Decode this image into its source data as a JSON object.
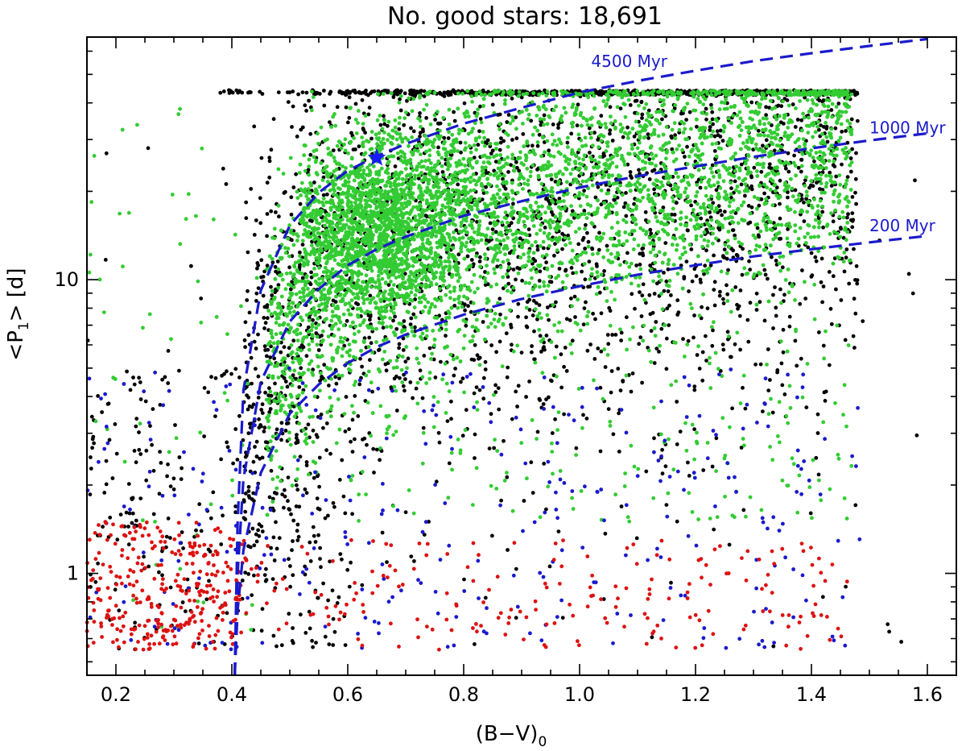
{
  "chart_data": {
    "type": "scatter",
    "title": "No. good stars: 18,691",
    "xlabel": "(B−V)",
    "xlabel_sub": "0",
    "ylabel_pre": "<P",
    "ylabel_sub": "1",
    "ylabel_post": "> [d]",
    "xlim": [
      0.15,
      1.65
    ],
    "ylim": [
      0.45,
      67
    ],
    "y_scale": "log",
    "grid": false,
    "x_ticks": [
      {
        "value": 0.2,
        "label": "0.2"
      },
      {
        "value": 0.4,
        "label": "0.4"
      },
      {
        "value": 0.6,
        "label": "0.6"
      },
      {
        "value": 0.8,
        "label": "0.8"
      },
      {
        "value": 1.0,
        "label": "1.0"
      },
      {
        "value": 1.2,
        "label": "1.2"
      },
      {
        "value": 1.4,
        "label": "1.4"
      },
      {
        "value": 1.6,
        "label": "1.6"
      }
    ],
    "y_ticks": [
      {
        "value": 1,
        "label": "1"
      },
      {
        "value": 10,
        "label": "10"
      }
    ],
    "colors": {
      "black": "#000000",
      "green": "#33cc33",
      "blue": "#1a1acc",
      "red": "#dd1111",
      "curve": "#1a1acc",
      "star": "#1a1aff"
    },
    "gyrochrones": [
      {
        "label": "4500 Myr",
        "label_at": [
          1.02,
          53
        ],
        "points": [
          [
            0.405,
            0.45
          ],
          [
            0.41,
            1.5
          ],
          [
            0.42,
            4.2
          ],
          [
            0.45,
            9.2
          ],
          [
            0.5,
            15.3
          ],
          [
            0.55,
            19.8
          ],
          [
            0.6,
            23.5
          ],
          [
            0.65,
            26.3
          ],
          [
            0.7,
            29
          ],
          [
            0.8,
            34
          ],
          [
            0.9,
            38.5
          ],
          [
            1.0,
            43.4
          ],
          [
            1.1,
            47.5
          ],
          [
            1.2,
            51.5
          ],
          [
            1.3,
            55.5
          ],
          [
            1.4,
            59
          ],
          [
            1.5,
            62.5
          ],
          [
            1.6,
            66
          ]
        ]
      },
      {
        "label": "1000 Myr",
        "label_at": [
          1.5,
          31.5
        ],
        "points": [
          [
            0.405,
            0.45
          ],
          [
            0.41,
            1.0
          ],
          [
            0.42,
            2.1
          ],
          [
            0.45,
            4.5
          ],
          [
            0.5,
            7.2
          ],
          [
            0.55,
            9.3
          ],
          [
            0.6,
            11.2
          ],
          [
            0.65,
            12.7
          ],
          [
            0.7,
            14
          ],
          [
            0.8,
            16.5
          ],
          [
            0.9,
            18.5
          ],
          [
            1.0,
            20.6
          ],
          [
            1.1,
            22.5
          ],
          [
            1.2,
            24.3
          ],
          [
            1.3,
            26.2
          ],
          [
            1.4,
            28
          ],
          [
            1.5,
            29.8
          ],
          [
            1.6,
            31.5
          ]
        ]
      },
      {
        "label": "200 Myr",
        "label_at": [
          1.5,
          14.6
        ],
        "points": [
          [
            0.405,
            0.45
          ],
          [
            0.41,
            0.75
          ],
          [
            0.42,
            1.2
          ],
          [
            0.45,
            2.2
          ],
          [
            0.5,
            3.5
          ],
          [
            0.55,
            4.4
          ],
          [
            0.6,
            5.2
          ],
          [
            0.65,
            5.9
          ],
          [
            0.7,
            6.5
          ],
          [
            0.8,
            7.6
          ],
          [
            0.9,
            8.6
          ],
          [
            1.0,
            9.5
          ],
          [
            1.1,
            10.4
          ],
          [
            1.2,
            11.2
          ],
          [
            1.3,
            12
          ],
          [
            1.4,
            12.7
          ],
          [
            1.5,
            13.4
          ],
          [
            1.6,
            14.1
          ]
        ]
      }
    ],
    "sun_marker": {
      "x": 0.65,
      "y": 26
    },
    "point_groups": [
      {
        "color": "black",
        "count": 2600,
        "x_range": [
          0.42,
          1.48
        ],
        "center_line": "1000 Myr",
        "spread_dex": 0.42,
        "y_max": 44,
        "y_min": 0.8
      },
      {
        "color": "black",
        "count": 160,
        "x_range": [
          0.38,
          1.48
        ],
        "y_band": [
          43.2,
          44.2
        ],
        "uniform": true
      },
      {
        "color": "black",
        "count": 260,
        "x_range": [
          0.15,
          0.6
        ],
        "y_band": [
          0.55,
          5
        ],
        "uniform": true
      },
      {
        "color": "black",
        "count": 120,
        "x_range": [
          0.15,
          1.6
        ],
        "y_band": [
          0.55,
          40
        ],
        "uniform": true
      },
      {
        "color": "green",
        "count": 4200,
        "x_range": [
          0.46,
          1.47
        ],
        "center_line": "1000 Myr",
        "spread_dex": 0.22,
        "y_max": 44,
        "y_min": 1.5
      },
      {
        "color": "green",
        "count": 1700,
        "x_range": [
          0.52,
          0.88
        ],
        "center": [
          0.65,
          15
        ],
        "spread_dex": 0.16,
        "y_max": 44,
        "y_min": 1.5
      },
      {
        "color": "green",
        "count": 230,
        "x_range": [
          0.5,
          1.47
        ],
        "y_band": [
          1.5,
          7
        ],
        "uniform": true
      },
      {
        "color": "green",
        "count": 60,
        "x_range": [
          0.15,
          0.45
        ],
        "y_band": [
          0.6,
          40
        ],
        "uniform": true
      },
      {
        "color": "blue",
        "count": 300,
        "x_range": [
          0.15,
          1.5
        ],
        "y_band": [
          0.55,
          5
        ],
        "uniform": true
      },
      {
        "color": "red",
        "count": 300,
        "x_range": [
          0.15,
          0.42
        ],
        "y_band": [
          0.55,
          1.5
        ],
        "uniform": true
      },
      {
        "color": "red",
        "count": 200,
        "x_range": [
          0.42,
          1.47
        ],
        "y_band": [
          0.55,
          1.3
        ],
        "uniform": true
      }
    ]
  }
}
